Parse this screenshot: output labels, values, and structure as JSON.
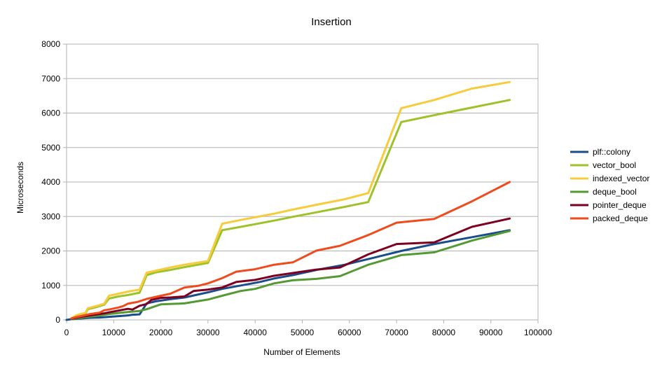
{
  "chart_data": {
    "type": "line",
    "title": "Insertion",
    "xlabel": "Number of Elements",
    "ylabel": "Microseconds",
    "xlim": [
      0,
      100000
    ],
    "ylim": [
      0,
      8000
    ],
    "x_ticks": [
      0,
      10000,
      20000,
      30000,
      40000,
      50000,
      60000,
      70000,
      80000,
      90000,
      100000
    ],
    "y_ticks": [
      0,
      1000,
      2000,
      3000,
      4000,
      5000,
      6000,
      7000,
      8000
    ],
    "grid": "horizontal",
    "legend_position": "right",
    "series": [
      {
        "name": "plf::colony",
        "color": "#1a4e8a",
        "points": [
          [
            0,
            0
          ],
          [
            1000,
            20
          ],
          [
            2000,
            30
          ],
          [
            3000,
            40
          ],
          [
            4000,
            50
          ],
          [
            5000,
            60
          ],
          [
            6000,
            65
          ],
          [
            7000,
            70
          ],
          [
            8000,
            80
          ],
          [
            9000,
            90
          ],
          [
            11000,
            110
          ],
          [
            13000,
            130
          ],
          [
            14000,
            150
          ],
          [
            15500,
            160
          ],
          [
            17000,
            480
          ],
          [
            19000,
            540
          ],
          [
            22000,
            600
          ],
          [
            25000,
            650
          ],
          [
            30000,
            800
          ],
          [
            33000,
            900
          ],
          [
            37000,
            1000
          ],
          [
            41000,
            1100
          ],
          [
            44000,
            1200
          ],
          [
            48000,
            1300
          ],
          [
            53000,
            1450
          ],
          [
            59000,
            1600
          ],
          [
            65000,
            1800
          ],
          [
            71000,
            2000
          ],
          [
            78000,
            2200
          ],
          [
            86000,
            2400
          ],
          [
            94000,
            2600
          ]
        ]
      },
      {
        "name": "vector_bool",
        "color": "#9ec22a",
        "points": [
          [
            1000,
            30
          ],
          [
            2000,
            110
          ],
          [
            3000,
            150
          ],
          [
            4000,
            180
          ],
          [
            4500,
            310
          ],
          [
            6000,
            360
          ],
          [
            8000,
            440
          ],
          [
            9000,
            620
          ],
          [
            11000,
            680
          ],
          [
            13000,
            720
          ],
          [
            15500,
            790
          ],
          [
            17000,
            1300
          ],
          [
            19000,
            1380
          ],
          [
            22000,
            1450
          ],
          [
            25000,
            1530
          ],
          [
            30000,
            1650
          ],
          [
            33000,
            2600
          ],
          [
            37000,
            2700
          ],
          [
            44000,
            2880
          ],
          [
            48000,
            2990
          ],
          [
            53000,
            3120
          ],
          [
            59000,
            3280
          ],
          [
            64000,
            3420
          ],
          [
            71000,
            5740
          ],
          [
            78000,
            5940
          ],
          [
            86000,
            6160
          ],
          [
            94000,
            6380
          ]
        ]
      },
      {
        "name": "indexed_vector",
        "color": "#f6cc3c",
        "points": [
          [
            1000,
            40
          ],
          [
            2000,
            130
          ],
          [
            3000,
            170
          ],
          [
            4000,
            200
          ],
          [
            4500,
            340
          ],
          [
            6000,
            390
          ],
          [
            8000,
            470
          ],
          [
            9000,
            700
          ],
          [
            11000,
            760
          ],
          [
            13000,
            820
          ],
          [
            15500,
            880
          ],
          [
            17000,
            1370
          ],
          [
            19000,
            1430
          ],
          [
            22000,
            1520
          ],
          [
            25000,
            1600
          ],
          [
            30000,
            1710
          ],
          [
            33000,
            2790
          ],
          [
            37000,
            2900
          ],
          [
            44000,
            3080
          ],
          [
            48000,
            3200
          ],
          [
            53000,
            3340
          ],
          [
            59000,
            3500
          ],
          [
            64000,
            3680
          ],
          [
            71000,
            6140
          ],
          [
            78000,
            6380
          ],
          [
            86000,
            6710
          ],
          [
            94000,
            6900
          ]
        ]
      },
      {
        "name": "deque_bool",
        "color": "#549a33",
        "points": [
          [
            1000,
            20
          ],
          [
            2000,
            40
          ],
          [
            3000,
            60
          ],
          [
            4000,
            80
          ],
          [
            5000,
            100
          ],
          [
            6000,
            110
          ],
          [
            7000,
            130
          ],
          [
            8000,
            150
          ],
          [
            9000,
            170
          ],
          [
            11000,
            200
          ],
          [
            13000,
            230
          ],
          [
            15500,
            260
          ],
          [
            17000,
            310
          ],
          [
            20000,
            450
          ],
          [
            22000,
            460
          ],
          [
            25000,
            480
          ],
          [
            30000,
            590
          ],
          [
            33000,
            700
          ],
          [
            37000,
            840
          ],
          [
            40000,
            900
          ],
          [
            44000,
            1060
          ],
          [
            48000,
            1150
          ],
          [
            53000,
            1190
          ],
          [
            58000,
            1270
          ],
          [
            64000,
            1600
          ],
          [
            71000,
            1880
          ],
          [
            78000,
            1960
          ],
          [
            86000,
            2300
          ],
          [
            94000,
            2580
          ]
        ]
      },
      {
        "name": "pointer_deque",
        "color": "#7e0021",
        "points": [
          [
            1000,
            30
          ],
          [
            2000,
            60
          ],
          [
            3000,
            90
          ],
          [
            4000,
            110
          ],
          [
            5000,
            130
          ],
          [
            6000,
            150
          ],
          [
            7000,
            170
          ],
          [
            8000,
            190
          ],
          [
            9000,
            220
          ],
          [
            11000,
            270
          ],
          [
            13000,
            320
          ],
          [
            14000,
            300
          ],
          [
            15500,
            410
          ],
          [
            17000,
            460
          ],
          [
            18000,
            580
          ],
          [
            20000,
            640
          ],
          [
            22000,
            650
          ],
          [
            25000,
            680
          ],
          [
            27000,
            840
          ],
          [
            30000,
            880
          ],
          [
            33000,
            940
          ],
          [
            36000,
            1100
          ],
          [
            40000,
            1160
          ],
          [
            44000,
            1280
          ],
          [
            48000,
            1360
          ],
          [
            53000,
            1460
          ],
          [
            58000,
            1520
          ],
          [
            64000,
            1900
          ],
          [
            70000,
            2200
          ],
          [
            78000,
            2250
          ],
          [
            86000,
            2700
          ],
          [
            94000,
            2940
          ]
        ]
      },
      {
        "name": "packed_deque",
        "color": "#ee4c1f",
        "points": [
          [
            1000,
            40
          ],
          [
            2000,
            80
          ],
          [
            3000,
            110
          ],
          [
            4000,
            140
          ],
          [
            5000,
            170
          ],
          [
            6000,
            190
          ],
          [
            7000,
            210
          ],
          [
            8000,
            280
          ],
          [
            9000,
            300
          ],
          [
            11000,
            360
          ],
          [
            12000,
            400
          ],
          [
            13000,
            470
          ],
          [
            15000,
            520
          ],
          [
            17000,
            610
          ],
          [
            20000,
            700
          ],
          [
            22000,
            760
          ],
          [
            25000,
            940
          ],
          [
            28000,
            990
          ],
          [
            30000,
            1060
          ],
          [
            33000,
            1210
          ],
          [
            36000,
            1400
          ],
          [
            40000,
            1470
          ],
          [
            44000,
            1600
          ],
          [
            48000,
            1670
          ],
          [
            53000,
            2010
          ],
          [
            58000,
            2150
          ],
          [
            64000,
            2460
          ],
          [
            70000,
            2820
          ],
          [
            78000,
            2930
          ],
          [
            86000,
            3440
          ],
          [
            94000,
            4000
          ]
        ]
      }
    ]
  }
}
